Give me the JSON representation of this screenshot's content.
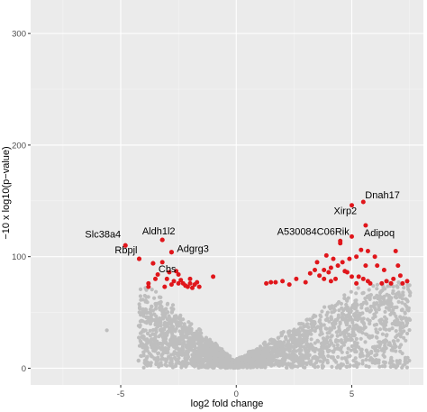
{
  "chart_data": {
    "type": "scatter",
    "title": "",
    "xlabel": "log2 fold change",
    "ylabel": "−10 x log10(p−value)",
    "xlim": [
      -8.9,
      8.1
    ],
    "ylim": [
      -15,
      330
    ],
    "x_ticks": [
      -5,
      0,
      5
    ],
    "x_tick_labels": [
      "-5",
      "0",
      "5"
    ],
    "y_ticks": [
      0,
      100,
      200,
      300
    ],
    "y_tick_labels": [
      "0",
      "100",
      "200",
      "300"
    ],
    "grid": true,
    "background": "#ebebeb",
    "colors": {
      "not_significant": "#bebebe",
      "significant": "#e0161b"
    },
    "labeled_genes": [
      {
        "name": "Dnah17",
        "x": 5.5,
        "y": 149
      },
      {
        "name": "Xirp2",
        "x": 5.0,
        "y": 146
      },
      {
        "name": "A530084C06Rik",
        "x": 4.5,
        "y": 114
      },
      {
        "name": "Adipoq",
        "x": 5.6,
        "y": 128
      },
      {
        "name": "Aldh1l2",
        "x": -3.2,
        "y": 115
      },
      {
        "name": "Slc38a4",
        "x": -4.8,
        "y": 110
      },
      {
        "name": "Rbpjl",
        "x": -4.2,
        "y": 98
      },
      {
        "name": "Adgrg3",
        "x": -2.8,
        "y": 104
      },
      {
        "name": "Cbs",
        "x": -3.6,
        "y": 94
      }
    ],
    "significant_points": [
      [
        -2.6,
        87
      ],
      [
        -2.9,
        86
      ],
      [
        -3.0,
        80
      ],
      [
        -2.5,
        84
      ],
      [
        -2.0,
        80
      ],
      [
        -1.8,
        75
      ],
      [
        -2.3,
        76
      ],
      [
        -2.1,
        73
      ],
      [
        -1.6,
        73
      ],
      [
        -1.7,
        77
      ],
      [
        -2.2,
        74
      ],
      [
        -1.9,
        72
      ],
      [
        -2.7,
        78
      ],
      [
        -2.5,
        76
      ],
      [
        -3.5,
        80
      ],
      [
        -3.8,
        76
      ],
      [
        -3.8,
        73
      ],
      [
        -3.1,
        73
      ],
      [
        -3.2,
        95
      ],
      [
        -3.4,
        84
      ],
      [
        -1.0,
        82
      ],
      [
        -2.4,
        79
      ],
      [
        -2.8,
        75
      ],
      [
        -2.0,
        76
      ],
      [
        1.3,
        76
      ],
      [
        1.5,
        77
      ],
      [
        1.7,
        77
      ],
      [
        2.0,
        78
      ],
      [
        2.3,
        75
      ],
      [
        2.6,
        80
      ],
      [
        3.0,
        77
      ],
      [
        3.2,
        85
      ],
      [
        3.5,
        95
      ],
      [
        3.4,
        88
      ],
      [
        3.8,
        88
      ],
      [
        3.8,
        80
      ],
      [
        4.1,
        78
      ],
      [
        4.1,
        90
      ],
      [
        4.2,
        98
      ],
      [
        4.4,
        92
      ],
      [
        4.6,
        95
      ],
      [
        4.7,
        87
      ],
      [
        4.9,
        98
      ],
      [
        5.0,
        82
      ],
      [
        5.2,
        76
      ],
      [
        5.3,
        82
      ],
      [
        5.4,
        106
      ],
      [
        5.5,
        80
      ],
      [
        5.6,
        92
      ],
      [
        5.7,
        78
      ],
      [
        5.8,
        76
      ],
      [
        6.0,
        100
      ],
      [
        6.1,
        92
      ],
      [
        6.3,
        76
      ],
      [
        6.5,
        78
      ],
      [
        6.8,
        80
      ],
      [
        6.9,
        105
      ],
      [
        7.0,
        92
      ],
      [
        7.2,
        76
      ],
      [
        7.4,
        78
      ],
      [
        5.2,
        100
      ],
      [
        4.0,
        86
      ],
      [
        4.8,
        86
      ],
      [
        3.9,
        101
      ],
      [
        6.7,
        76
      ],
      [
        4.3,
        80
      ],
      [
        5.7,
        105
      ],
      [
        3.6,
        83
      ],
      [
        6.4,
        88
      ],
      [
        7.1,
        83
      ],
      [
        4.5,
        112
      ],
      [
        5.0,
        118
      ],
      [
        -4.2,
        98
      ],
      [
        -3.6,
        94
      ],
      [
        -2.8,
        104
      ],
      [
        -4.8,
        110
      ],
      [
        -3.2,
        115
      ]
    ],
    "background_points_note": ""
  }
}
